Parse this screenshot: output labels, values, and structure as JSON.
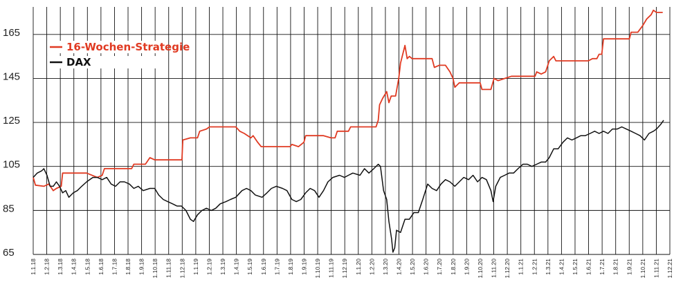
{
  "chart_data": {
    "type": "line",
    "title": "",
    "xlabel": "",
    "ylabel": "",
    "ylim": [
      65,
      175
    ],
    "yticks": [
      65,
      85,
      105,
      125,
      145,
      165
    ],
    "grid": true,
    "legend_placement": "top-left",
    "x_tick_labels": [
      "1.1.18",
      "1.2.18",
      "1.3.18",
      "1.4.18",
      "1.5.18",
      "1.6.18",
      "1.7.18",
      "1.8.18",
      "1.9.18",
      "1.10.18",
      "1.11.18",
      "1.12.18",
      "1.1.19",
      "1.2.19",
      "1.3.19",
      "1.4.19",
      "1.5.19",
      "1.6.19",
      "1.7.19",
      "1.8.19",
      "1.9.19",
      "1.10.19",
      "1.11.19",
      "1.12.19",
      "1.1.20",
      "1.2.20",
      "1.3.20",
      "1.4.20",
      "1.5.20",
      "1.6.20",
      "1.7.20",
      "1.8.20",
      "1.9.20",
      "1.10.20",
      "1.11.20",
      "1.12.20",
      "1.1.21",
      "1.2.21",
      "1.3.21",
      "1.4.21",
      "1.5.21",
      "1.6.21",
      "1.7.21",
      "1.8.21",
      "1.9.21",
      "1.10.21",
      "1.11.21",
      "1.12.21"
    ],
    "series": [
      {
        "name": "16-Wochen-Strategie",
        "color": "#e03a22",
        "points": [
          [
            "2018-01-01",
            100
          ],
          [
            "2018-01-06",
            96.5
          ],
          [
            "2018-01-25",
            96
          ],
          [
            "2018-02-05",
            97
          ],
          [
            "2018-02-15",
            94
          ],
          [
            "2018-02-22",
            95
          ],
          [
            "2018-03-05",
            96
          ],
          [
            "2018-03-08",
            102
          ],
          [
            "2018-04-10",
            102
          ],
          [
            "2018-05-01",
            102
          ],
          [
            "2018-05-25",
            100
          ],
          [
            "2018-06-05",
            101
          ],
          [
            "2018-06-10",
            104
          ],
          [
            "2018-07-15",
            104
          ],
          [
            "2018-08-10",
            104
          ],
          [
            "2018-08-15",
            106
          ],
          [
            "2018-09-10",
            106
          ],
          [
            "2018-09-20",
            109
          ],
          [
            "2018-10-01",
            108
          ],
          [
            "2018-10-20",
            108
          ],
          [
            "2018-11-01",
            108
          ],
          [
            "2018-12-01",
            108
          ],
          [
            "2018-12-03",
            117
          ],
          [
            "2018-12-20",
            118
          ],
          [
            "2019-01-05",
            118
          ],
          [
            "2019-01-10",
            121
          ],
          [
            "2019-01-25",
            122
          ],
          [
            "2019-02-01",
            123
          ],
          [
            "2019-03-15",
            123
          ],
          [
            "2019-04-01",
            123
          ],
          [
            "2019-04-10",
            121
          ],
          [
            "2019-04-20",
            120
          ],
          [
            "2019-05-05",
            118
          ],
          [
            "2019-05-10",
            119
          ],
          [
            "2019-05-20",
            116
          ],
          [
            "2019-05-28",
            114
          ],
          [
            "2019-06-05",
            114
          ],
          [
            "2019-07-15",
            114
          ],
          [
            "2019-08-01",
            114
          ],
          [
            "2019-08-05",
            115
          ],
          [
            "2019-08-20",
            114
          ],
          [
            "2019-09-01",
            116
          ],
          [
            "2019-09-05",
            119
          ],
          [
            "2019-10-15",
            119
          ],
          [
            "2019-11-01",
            118
          ],
          [
            "2019-11-10",
            118
          ],
          [
            "2019-11-15",
            121
          ],
          [
            "2019-12-10",
            121
          ],
          [
            "2019-12-15",
            123
          ],
          [
            "2020-02-05",
            123
          ],
          [
            "2020-02-10",
            123
          ],
          [
            "2020-02-15",
            126
          ],
          [
            "2020-02-18",
            133
          ],
          [
            "2020-02-25",
            136
          ],
          [
            "2020-03-05",
            139
          ],
          [
            "2020-03-10",
            134
          ],
          [
            "2020-03-15",
            137
          ],
          [
            "2020-03-25",
            137
          ],
          [
            "2020-04-01",
            145
          ],
          [
            "2020-04-05",
            152
          ],
          [
            "2020-04-10",
            156
          ],
          [
            "2020-04-15",
            160
          ],
          [
            "2020-04-20",
            154
          ],
          [
            "2020-04-25",
            155
          ],
          [
            "2020-05-01",
            154
          ],
          [
            "2020-06-15",
            154
          ],
          [
            "2020-06-20",
            150
          ],
          [
            "2020-07-01",
            151
          ],
          [
            "2020-07-15",
            151
          ],
          [
            "2020-07-25",
            148
          ],
          [
            "2020-08-01",
            145
          ],
          [
            "2020-08-05",
            141
          ],
          [
            "2020-08-15",
            143
          ],
          [
            "2020-09-20",
            143
          ],
          [
            "2020-10-01",
            143
          ],
          [
            "2020-10-05",
            140
          ],
          [
            "2020-10-25",
            140
          ],
          [
            "2020-11-01",
            145
          ],
          [
            "2020-11-10",
            144
          ],
          [
            "2020-11-25",
            145
          ],
          [
            "2020-12-10",
            146
          ],
          [
            "2021-01-15",
            146
          ],
          [
            "2021-02-01",
            146
          ],
          [
            "2021-02-05",
            148
          ],
          [
            "2021-02-15",
            147
          ],
          [
            "2021-02-25",
            148
          ],
          [
            "2021-03-05",
            153
          ],
          [
            "2021-03-15",
            155
          ],
          [
            "2021-03-20",
            153
          ],
          [
            "2021-04-15",
            153
          ],
          [
            "2021-05-15",
            153
          ],
          [
            "2021-06-01",
            153
          ],
          [
            "2021-06-10",
            154
          ],
          [
            "2021-06-20",
            154
          ],
          [
            "2021-06-25",
            156
          ],
          [
            "2021-07-01",
            156
          ],
          [
            "2021-07-05",
            163
          ],
          [
            "2021-08-15",
            163
          ],
          [
            "2021-09-01",
            163
          ],
          [
            "2021-09-05",
            166
          ],
          [
            "2021-09-20",
            166
          ],
          [
            "2021-10-01",
            169
          ],
          [
            "2021-10-10",
            172
          ],
          [
            "2021-10-20",
            174
          ],
          [
            "2021-10-25",
            176
          ],
          [
            "2021-11-01",
            175
          ],
          [
            "2021-11-15",
            175
          ]
        ]
      },
      {
        "name": "DAX",
        "color": "#111111",
        "points": [
          [
            "2018-01-01",
            100
          ],
          [
            "2018-01-10",
            102
          ],
          [
            "2018-01-20",
            103
          ],
          [
            "2018-01-25",
            104
          ],
          [
            "2018-02-01",
            101
          ],
          [
            "2018-02-08",
            96
          ],
          [
            "2018-02-15",
            96
          ],
          [
            "2018-02-22",
            98
          ],
          [
            "2018-03-01",
            96
          ],
          [
            "2018-03-08",
            93
          ],
          [
            "2018-03-15",
            94
          ],
          [
            "2018-03-22",
            91
          ],
          [
            "2018-04-01",
            93
          ],
          [
            "2018-04-10",
            94
          ],
          [
            "2018-04-20",
            96
          ],
          [
            "2018-05-01",
            98
          ],
          [
            "2018-05-15",
            100
          ],
          [
            "2018-05-25",
            100
          ],
          [
            "2018-06-05",
            99
          ],
          [
            "2018-06-15",
            100
          ],
          [
            "2018-06-25",
            97
          ],
          [
            "2018-07-05",
            96
          ],
          [
            "2018-07-15",
            98
          ],
          [
            "2018-07-25",
            98
          ],
          [
            "2018-08-05",
            97
          ],
          [
            "2018-08-15",
            95
          ],
          [
            "2018-08-25",
            96
          ],
          [
            "2018-09-05",
            94
          ],
          [
            "2018-09-20",
            95
          ],
          [
            "2018-10-01",
            95
          ],
          [
            "2018-10-10",
            92
          ],
          [
            "2018-10-20",
            90
          ],
          [
            "2018-10-30",
            89
          ],
          [
            "2018-11-10",
            88
          ],
          [
            "2018-11-20",
            87
          ],
          [
            "2018-11-30",
            87
          ],
          [
            "2018-12-10",
            85
          ],
          [
            "2018-12-20",
            81
          ],
          [
            "2018-12-27",
            80
          ],
          [
            "2019-01-05",
            83
          ],
          [
            "2019-01-15",
            85
          ],
          [
            "2019-01-25",
            86
          ],
          [
            "2019-02-05",
            85
          ],
          [
            "2019-02-15",
            86
          ],
          [
            "2019-02-25",
            88
          ],
          [
            "2019-03-10",
            89
          ],
          [
            "2019-03-20",
            90
          ],
          [
            "2019-04-01",
            91
          ],
          [
            "2019-04-15",
            94
          ],
          [
            "2019-04-25",
            95
          ],
          [
            "2019-05-05",
            94
          ],
          [
            "2019-05-15",
            92
          ],
          [
            "2019-05-30",
            91
          ],
          [
            "2019-06-10",
            93
          ],
          [
            "2019-06-20",
            95
          ],
          [
            "2019-07-01",
            96
          ],
          [
            "2019-07-15",
            95
          ],
          [
            "2019-07-25",
            94
          ],
          [
            "2019-08-05",
            90
          ],
          [
            "2019-08-15",
            89
          ],
          [
            "2019-08-25",
            90
          ],
          [
            "2019-09-05",
            93
          ],
          [
            "2019-09-15",
            95
          ],
          [
            "2019-09-25",
            94
          ],
          [
            "2019-10-05",
            91
          ],
          [
            "2019-10-15",
            94
          ],
          [
            "2019-10-25",
            98
          ],
          [
            "2019-11-05",
            100
          ],
          [
            "2019-11-20",
            101
          ],
          [
            "2019-12-01",
            100
          ],
          [
            "2019-12-10",
            101
          ],
          [
            "2019-12-20",
            102
          ],
          [
            "2020-01-05",
            101
          ],
          [
            "2020-01-15",
            104
          ],
          [
            "2020-01-25",
            102
          ],
          [
            "2020-02-05",
            104
          ],
          [
            "2020-02-15",
            106
          ],
          [
            "2020-02-20",
            105
          ],
          [
            "2020-02-27",
            94
          ],
          [
            "2020-03-05",
            90
          ],
          [
            "2020-03-10",
            80
          ],
          [
            "2020-03-16",
            72
          ],
          [
            "2020-03-19",
            66
          ],
          [
            "2020-03-23",
            68
          ],
          [
            "2020-03-27",
            76
          ],
          [
            "2020-04-05",
            75
          ],
          [
            "2020-04-15",
            81
          ],
          [
            "2020-04-25",
            81
          ],
          [
            "2020-05-05",
            84
          ],
          [
            "2020-05-15",
            84
          ],
          [
            "2020-05-25",
            90
          ],
          [
            "2020-06-05",
            97
          ],
          [
            "2020-06-15",
            95
          ],
          [
            "2020-06-25",
            94
          ],
          [
            "2020-07-05",
            97
          ],
          [
            "2020-07-15",
            99
          ],
          [
            "2020-07-25",
            98
          ],
          [
            "2020-08-05",
            96
          ],
          [
            "2020-08-15",
            98
          ],
          [
            "2020-08-25",
            100
          ],
          [
            "2020-09-05",
            99
          ],
          [
            "2020-09-15",
            101
          ],
          [
            "2020-09-25",
            98
          ],
          [
            "2020-10-05",
            100
          ],
          [
            "2020-10-15",
            99
          ],
          [
            "2020-10-25",
            94
          ],
          [
            "2020-10-30",
            89
          ],
          [
            "2020-11-05",
            96
          ],
          [
            "2020-11-15",
            100
          ],
          [
            "2020-11-25",
            101
          ],
          [
            "2020-12-05",
            102
          ],
          [
            "2020-12-15",
            102
          ],
          [
            "2020-12-25",
            104
          ],
          [
            "2021-01-05",
            106
          ],
          [
            "2021-01-15",
            106
          ],
          [
            "2021-01-25",
            105
          ],
          [
            "2021-02-05",
            106
          ],
          [
            "2021-02-15",
            107
          ],
          [
            "2021-02-25",
            107
          ],
          [
            "2021-03-05",
            109
          ],
          [
            "2021-03-15",
            113
          ],
          [
            "2021-03-25",
            113
          ],
          [
            "2021-04-05",
            116
          ],
          [
            "2021-04-15",
            118
          ],
          [
            "2021-04-25",
            117
          ],
          [
            "2021-05-05",
            118
          ],
          [
            "2021-05-15",
            119
          ],
          [
            "2021-05-25",
            119
          ],
          [
            "2021-06-05",
            120
          ],
          [
            "2021-06-15",
            121
          ],
          [
            "2021-06-25",
            120
          ],
          [
            "2021-07-05",
            121
          ],
          [
            "2021-07-15",
            120
          ],
          [
            "2021-07-25",
            122
          ],
          [
            "2021-08-05",
            122
          ],
          [
            "2021-08-15",
            123
          ],
          [
            "2021-08-25",
            122
          ],
          [
            "2021-09-05",
            121
          ],
          [
            "2021-09-15",
            120
          ],
          [
            "2021-09-25",
            119
          ],
          [
            "2021-10-05",
            117
          ],
          [
            "2021-10-15",
            120
          ],
          [
            "2021-10-25",
            121
          ],
          [
            "2021-11-01",
            122
          ],
          [
            "2021-11-10",
            124
          ],
          [
            "2021-11-17",
            126
          ]
        ]
      }
    ]
  }
}
